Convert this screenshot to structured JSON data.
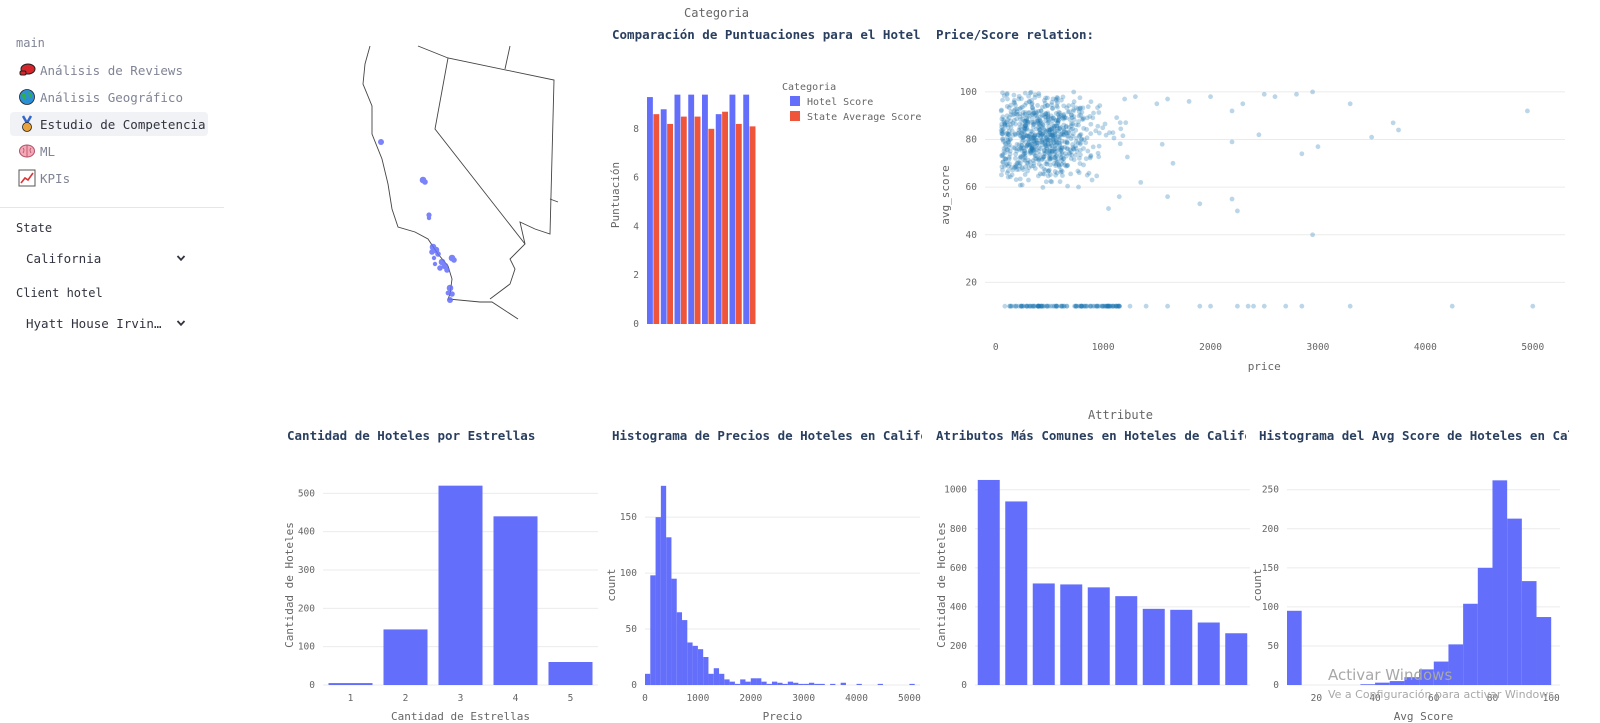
{
  "sidebar": {
    "section": "main",
    "items": [
      {
        "label": "Análisis de Reviews",
        "icon": "boxing-glove-icon",
        "active": false
      },
      {
        "label": "Análisis Geográfico",
        "icon": "globe-icon",
        "active": false
      },
      {
        "label": "Estudio de Competencia",
        "icon": "medal-icon",
        "active": true
      },
      {
        "label": "ML",
        "icon": "brain-icon",
        "active": false
      },
      {
        "label": "KPIs",
        "icon": "chart-increasing-icon",
        "active": false
      }
    ],
    "state_label": "State",
    "state_value": "California",
    "client_label": "Client hotel",
    "client_value": "Hyatt House Irvine…"
  },
  "map": {
    "region": "California",
    "marker_color": "#636efa"
  },
  "comparison": {
    "title": "Comparación de Puntuaciones para el Hotel",
    "chart_data": {
      "type": "bar",
      "ylabel": "Puntuación",
      "legend_title": "Categoria",
      "legend_position": "top-right",
      "ylim": [
        0,
        10
      ],
      "yticks": [
        0,
        2,
        4,
        6,
        8
      ],
      "series": [
        {
          "name": "Hotel Score",
          "color": "#636efa",
          "values": [
            9.3,
            8.8,
            9.4,
            9.4,
            9.4,
            8.6,
            9.4,
            9.4
          ]
        },
        {
          "name": "State Average Score",
          "color": "#ef553b",
          "values": [
            8.6,
            8.2,
            8.5,
            8.5,
            8.0,
            8.7,
            8.2,
            8.1
          ]
        }
      ]
    }
  },
  "scatter": {
    "title": "Price/Score relation:",
    "chart_data": {
      "type": "scatter",
      "xlabel": "price",
      "ylabel": "avg_score",
      "xlim": [
        -100,
        5300
      ],
      "ylim": [
        0,
        105
      ],
      "xticks": [
        0,
        1000,
        2000,
        3000,
        4000,
        5000
      ],
      "yticks": [
        20,
        40,
        60,
        80,
        100
      ],
      "color": "#1f77b4",
      "outliers": [
        [
          1200,
          97
        ],
        [
          1300,
          98
        ],
        [
          1500,
          95
        ],
        [
          1600,
          97
        ],
        [
          1800,
          96
        ],
        [
          2000,
          98
        ],
        [
          2200,
          92
        ],
        [
          2300,
          95
        ],
        [
          2500,
          99
        ],
        [
          2600,
          98
        ],
        [
          2800,
          99
        ],
        [
          2950,
          100
        ],
        [
          3300,
          95
        ],
        [
          3700,
          87
        ],
        [
          3750,
          84
        ],
        [
          4950,
          92
        ],
        [
          3500,
          81
        ],
        [
          2450,
          82
        ],
        [
          2200,
          79
        ],
        [
          3000,
          77
        ],
        [
          2850,
          74
        ],
        [
          1650,
          70
        ],
        [
          1350,
          62
        ],
        [
          1600,
          56
        ],
        [
          1900,
          53
        ],
        [
          2200,
          55
        ],
        [
          1050,
          51
        ],
        [
          1150,
          56
        ],
        [
          2250,
          50
        ],
        [
          2950,
          40
        ],
        [
          1550,
          78
        ],
        [
          1250,
          10
        ],
        [
          1400,
          10
        ],
        [
          1600,
          10
        ],
        [
          1900,
          10
        ],
        [
          2000,
          10
        ],
        [
          2250,
          10
        ],
        [
          2350,
          10
        ],
        [
          2400,
          10
        ],
        [
          2500,
          10
        ],
        [
          2700,
          10
        ],
        [
          2850,
          10
        ],
        [
          3300,
          10
        ],
        [
          4250,
          10
        ],
        [
          5000,
          10
        ]
      ]
    }
  },
  "stars": {
    "title": "Cantidad de Hoteles por Estrellas",
    "chart_data": {
      "type": "bar",
      "xlabel": "Cantidad de Estrellas",
      "ylabel": "Cantidad de Hoteles",
      "categories": [
        "1",
        "2",
        "3",
        "4",
        "5"
      ],
      "values": [
        5,
        145,
        520,
        440,
        60
      ],
      "ylim": [
        0,
        540
      ],
      "yticks": [
        0,
        100,
        200,
        300,
        400,
        500
      ],
      "color": "#636efa"
    }
  },
  "prices": {
    "title": "Histograma de Precios de Hoteles en Califo",
    "chart_data": {
      "type": "bar",
      "xlabel": "Precio",
      "ylabel": "count",
      "bin_width": 100,
      "bins_start": 0,
      "values": [
        10,
        98,
        150,
        178,
        132,
        95,
        65,
        58,
        38,
        35,
        32,
        25,
        10,
        15,
        10,
        5,
        3,
        1,
        5,
        3,
        6,
        6,
        3,
        1,
        3,
        2,
        1,
        3,
        2,
        1,
        1,
        2,
        1,
        1,
        0,
        1,
        0,
        2,
        0,
        0,
        1,
        0,
        0,
        0,
        1,
        0,
        0,
        0,
        0,
        0,
        1
      ],
      "xlim": [
        0,
        5200
      ],
      "ylim": [
        0,
        185
      ],
      "xticks": [
        0,
        1000,
        2000,
        3000,
        4000,
        5000
      ],
      "yticks": [
        0,
        50,
        100,
        150
      ],
      "color": "#636efa"
    }
  },
  "attributes": {
    "title": "Atributos Más Comunes en Hoteles de Califo",
    "header": "Attribute",
    "chart_data": {
      "type": "bar",
      "ylabel": "Cantidad de Hoteles",
      "values": [
        1050,
        940,
        520,
        515,
        500,
        455,
        390,
        385,
        320,
        265
      ],
      "ylim": [
        0,
        1060
      ],
      "yticks": [
        0,
        200,
        400,
        600,
        800,
        1000
      ],
      "color": "#636efa"
    }
  },
  "avgscore": {
    "title": "Histograma del Avg Score de Hoteles en Cal",
    "chart_data": {
      "type": "bar",
      "xlabel": "Avg Score",
      "ylabel": "count",
      "bins": [
        {
          "x0": 10,
          "x1": 15,
          "v": 95
        },
        {
          "x0": 15,
          "x1": 35,
          "v": 0
        },
        {
          "x0": 35,
          "x1": 40,
          "v": 1
        },
        {
          "x0": 40,
          "x1": 45,
          "v": 3
        },
        {
          "x0": 45,
          "x1": 50,
          "v": 5
        },
        {
          "x0": 50,
          "x1": 55,
          "v": 10
        },
        {
          "x0": 55,
          "x1": 60,
          "v": 20
        },
        {
          "x0": 60,
          "x1": 65,
          "v": 30
        },
        {
          "x0": 65,
          "x1": 70,
          "v": 52
        },
        {
          "x0": 70,
          "x1": 75,
          "v": 104
        },
        {
          "x0": 75,
          "x1": 80,
          "v": 150
        },
        {
          "x0": 80,
          "x1": 85,
          "v": 262
        },
        {
          "x0": 85,
          "x1": 90,
          "v": 213
        },
        {
          "x0": 90,
          "x1": 95,
          "v": 133
        },
        {
          "x0": 95,
          "x1": 100,
          "v": 87
        }
      ],
      "xlim": [
        10,
        103
      ],
      "ylim": [
        0,
        265
      ],
      "xticks": [
        20,
        40,
        60,
        80,
        100
      ],
      "yticks": [
        0,
        50,
        100,
        150,
        200,
        250
      ],
      "color": "#636efa"
    }
  },
  "header_categoria": "Categoria",
  "watermark": {
    "line1": "Activar Windows",
    "line2": "Ve a Configuración para activar Windows."
  }
}
